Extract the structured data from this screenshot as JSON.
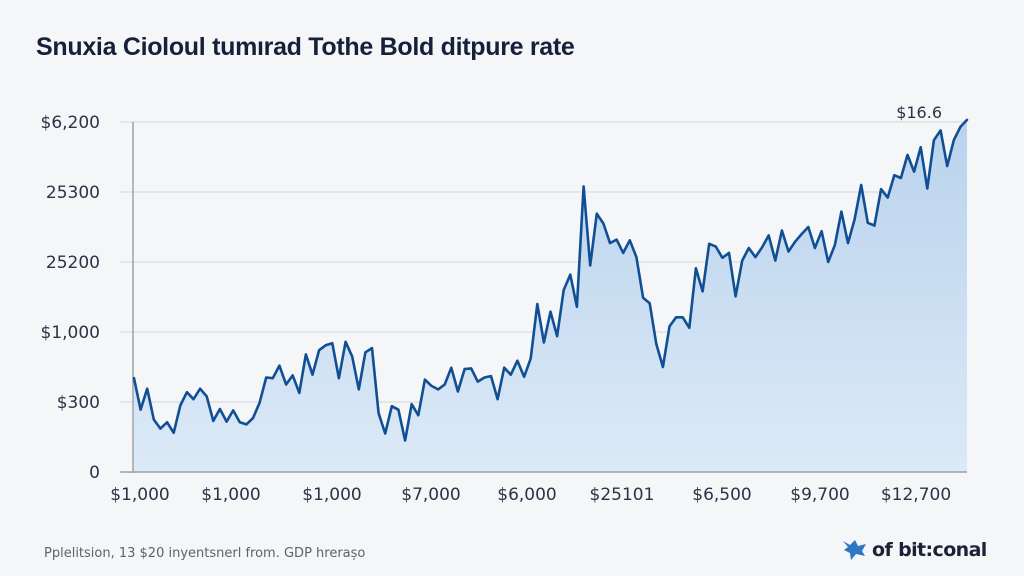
{
  "chart_data": {
    "type": "area",
    "title": "Snuxia Cioloul tumırad Tothe Bold ditpure rate",
    "xlabel": "",
    "ylabel": "",
    "ylim_ticks": [
      0,
      5
    ],
    "grid": true,
    "y_ticks": [
      {
        "value": 0,
        "label": "0"
      },
      {
        "value": 1,
        "label": "$300"
      },
      {
        "value": 2,
        "label": "$1,000"
      },
      {
        "value": 3,
        "label": "25200"
      },
      {
        "value": 4,
        "label": "25300"
      },
      {
        "value": 5,
        "label": "$6,200"
      }
    ],
    "x_ticks": [
      "$1,000",
      "$1,000",
      "$1,000",
      "$7,000",
      "$6,000",
      "$25101",
      "$6,500",
      "$9,700",
      "$12,700"
    ],
    "annotation": {
      "label": "$16.6",
      "at": "end"
    },
    "series": [
      {
        "name": "rate",
        "color": "#114f94",
        "fill": "#c7dcf1",
        "values": [
          1.34,
          0.89,
          1.19,
          0.75,
          0.62,
          0.71,
          0.56,
          0.95,
          1.14,
          1.04,
          1.19,
          1.08,
          0.73,
          0.9,
          0.72,
          0.88,
          0.71,
          0.68,
          0.77,
          0.99,
          1.35,
          1.34,
          1.52,
          1.25,
          1.38,
          1.13,
          1.68,
          1.39,
          1.74,
          1.81,
          1.84,
          1.34,
          1.86,
          1.65,
          1.18,
          1.71,
          1.77,
          0.84,
          0.55,
          0.94,
          0.89,
          0.45,
          0.97,
          0.81,
          1.32,
          1.23,
          1.18,
          1.25,
          1.49,
          1.15,
          1.47,
          1.48,
          1.29,
          1.35,
          1.37,
          1.04,
          1.49,
          1.39,
          1.59,
          1.36,
          1.62,
          2.4,
          1.85,
          2.29,
          1.94,
          2.6,
          2.82,
          2.36,
          4.08,
          2.95,
          3.69,
          3.55,
          3.27,
          3.32,
          3.13,
          3.31,
          3.07,
          2.49,
          2.41,
          1.83,
          1.5,
          2.08,
          2.21,
          2.21,
          2.06,
          2.91,
          2.58,
          3.26,
          3.22,
          3.06,
          3.13,
          2.51,
          3.02,
          3.2,
          3.07,
          3.21,
          3.38,
          3.02,
          3.45,
          3.15,
          3.29,
          3.4,
          3.5,
          3.2,
          3.44,
          3.0,
          3.24,
          3.72,
          3.27,
          3.61,
          4.1,
          3.56,
          3.52,
          4.04,
          3.92,
          4.24,
          4.2,
          4.53,
          4.29,
          4.64,
          4.05,
          4.74,
          4.88,
          4.37,
          4.74,
          4.93,
          5.03
        ]
      }
    ]
  },
  "footnote": "Pplelitsion, 13 $20  inyentsnerl from. GDP hrerașo",
  "logo": {
    "icon": "map-pin-icon",
    "text": "of bit:conal"
  }
}
